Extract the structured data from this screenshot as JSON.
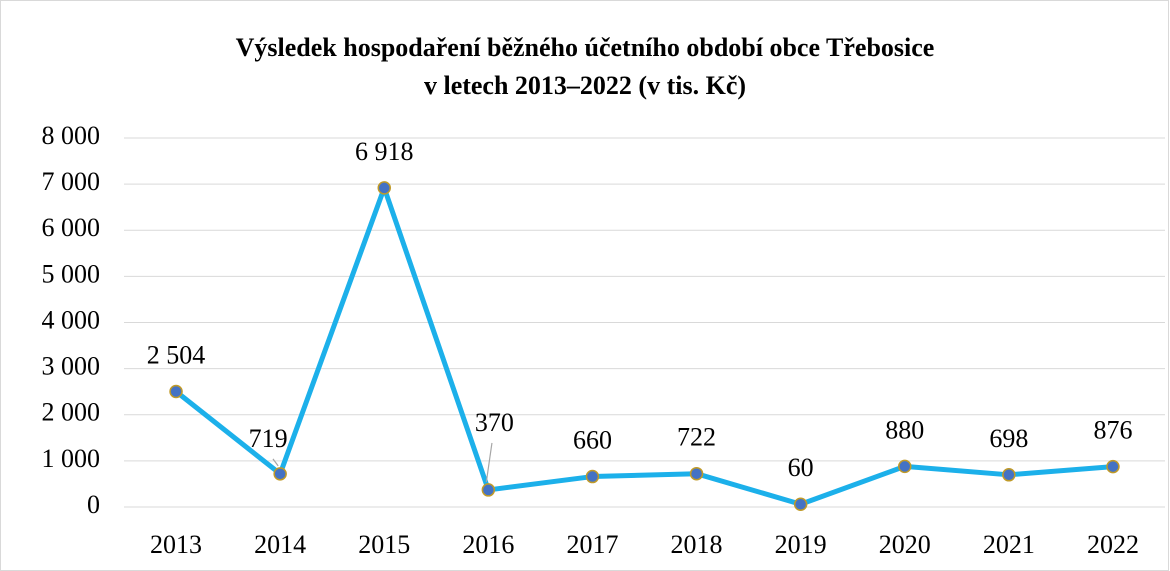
{
  "chart_data": {
    "type": "line",
    "title": [
      "Výsledek hospodaření běžného účetního období obce Třebosice",
      "v letech 2013–2022 (v tis. Kč)"
    ],
    "categories": [
      "2013",
      "2014",
      "2015",
      "2016",
      "2017",
      "2018",
      "2019",
      "2020",
      "2021",
      "2022"
    ],
    "values": [
      2504,
      719,
      6918,
      370,
      660,
      722,
      60,
      880,
      698,
      876
    ],
    "value_labels": [
      "2 504",
      "719",
      "6 918",
      "370",
      "660",
      "722",
      "60",
      "880",
      "698",
      "876"
    ],
    "color": "#1cb0ea",
    "marker_color": "#4472c4",
    "marker_edge_color": "#c09a28",
    "ylim": [
      0,
      8000
    ],
    "yticks": [
      {
        "value": 0,
        "label": "0"
      },
      {
        "value": 1000,
        "label": "1 000"
      },
      {
        "value": 2000,
        "label": "2 000"
      },
      {
        "value": 3000,
        "label": "3 000"
      },
      {
        "value": 4000,
        "label": "4 000"
      },
      {
        "value": 5000,
        "label": "5 000"
      },
      {
        "value": 6000,
        "label": "6 000"
      },
      {
        "value": 7000,
        "label": "7 000"
      },
      {
        "value": 8000,
        "label": "8 000"
      }
    ],
    "grid": true
  }
}
